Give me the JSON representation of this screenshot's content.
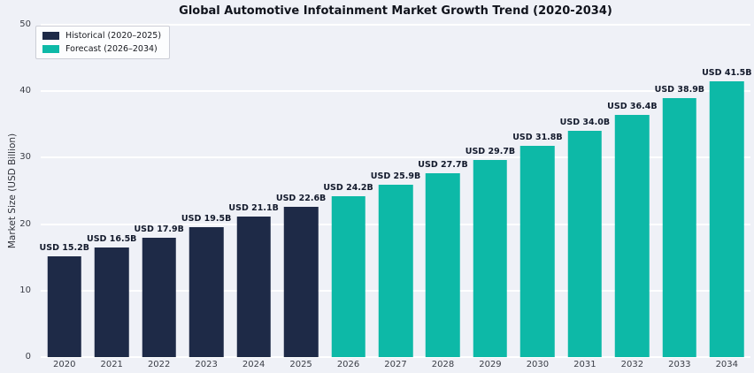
{
  "figure": {
    "title": "Global Automotive Infotainment Market Growth Trend (2020-2034)",
    "ylabel": "Market Size (USD Billion)"
  },
  "legend": {
    "position": "upper left",
    "items": [
      {
        "label": "Historical (2020–2025)",
        "color": "#1e2a47"
      },
      {
        "label": "Forecast (2026–2034)",
        "color": "#0db9a7"
      }
    ]
  },
  "chart_data": {
    "type": "bar",
    "title": "Global Automotive Infotainment Market Growth Trend (2020-2034)",
    "xlabel": "",
    "ylabel": "Market Size (USD Billion)",
    "categories": [
      "2020",
      "2021",
      "2022",
      "2023",
      "2024",
      "2025",
      "2026",
      "2027",
      "2028",
      "2029",
      "2030",
      "2031",
      "2032",
      "2033",
      "2034"
    ],
    "values": [
      15.2,
      16.5,
      17.9,
      19.5,
      21.1,
      22.6,
      24.2,
      25.9,
      27.7,
      29.7,
      31.8,
      34.0,
      36.4,
      38.9,
      41.5
    ],
    "bar_labels": [
      "USD 15.2B",
      "USD 16.5B",
      "USD 17.9B",
      "USD 19.5B",
      "USD 21.1B",
      "USD 22.6B",
      "USD 24.2B",
      "USD 25.9B",
      "USD 27.7B",
      "USD 29.7B",
      "USD 31.8B",
      "USD 34.0B",
      "USD 36.4B",
      "USD 38.9B",
      "USD 41.5B"
    ],
    "series": [
      {
        "name": "Historical (2020–2025)",
        "color": "#1e2a47",
        "categories": [
          "2020",
          "2021",
          "2022",
          "2023",
          "2024",
          "2025"
        ],
        "values": [
          15.2,
          16.5,
          17.9,
          19.5,
          21.1,
          22.6
        ]
      },
      {
        "name": "Forecast (2026–2034)",
        "color": "#0db9a7",
        "categories": [
          "2026",
          "2027",
          "2028",
          "2029",
          "2030",
          "2031",
          "2032",
          "2033",
          "2034"
        ],
        "values": [
          24.2,
          25.9,
          27.7,
          29.7,
          31.8,
          34.0,
          36.4,
          38.9,
          41.5
        ]
      }
    ],
    "ylim": [
      0,
      50
    ],
    "yticks": [
      0,
      10,
      20,
      30,
      40,
      50
    ],
    "grid": true,
    "legend_position": "upper left",
    "colors": {
      "historical": "#1e2a47",
      "forecast": "#0db9a7",
      "background": "#eff1f7",
      "gridline": "#ffffff"
    }
  }
}
